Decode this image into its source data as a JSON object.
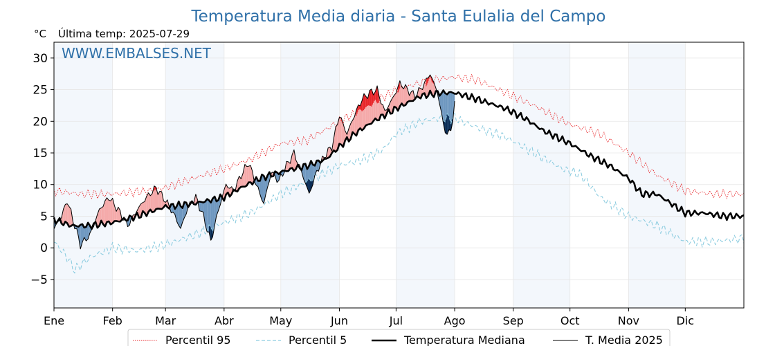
{
  "chart_data": {
    "type": "line",
    "title": "Temperatura Media diaria - Santa Eulalia del Campo",
    "unit_label": "°C",
    "subtitle": "Última temp: 2025-07-29",
    "watermark": "WWW.EMBALSES.NET",
    "ylim": [
      -9.5,
      32.5
    ],
    "yticks": [
      -5,
      0,
      5,
      10,
      15,
      20,
      25,
      30
    ],
    "ytick_labels": [
      "−5",
      "0",
      "5",
      "10",
      "15",
      "20",
      "25",
      "30"
    ],
    "xlim": [
      1,
      366
    ],
    "months": [
      {
        "label": "Ene",
        "start": 1
      },
      {
        "label": "Feb",
        "start": 32
      },
      {
        "label": "Mar",
        "start": 60
      },
      {
        "label": "Abr",
        "start": 91
      },
      {
        "label": "May",
        "start": 121
      },
      {
        "label": "Jun",
        "start": 152
      },
      {
        "label": "Jul",
        "start": 182
      },
      {
        "label": "Ago",
        "start": 213
      },
      {
        "label": "Sep",
        "start": 244
      },
      {
        "label": "Oct",
        "start": 274
      },
      {
        "label": "Nov",
        "start": 305
      },
      {
        "label": "Dic",
        "start": 335
      }
    ],
    "series": [
      {
        "name": "Percentil 95",
        "color": "#e8262a",
        "style": "dotted",
        "anchors": [
          [
            1,
            9.0
          ],
          [
            15,
            8.5
          ],
          [
            32,
            8.5
          ],
          [
            50,
            9.0
          ],
          [
            60,
            9.5
          ],
          [
            75,
            11.0
          ],
          [
            91,
            12.5
          ],
          [
            105,
            14.0
          ],
          [
            121,
            16.5
          ],
          [
            135,
            17.0
          ],
          [
            152,
            20.0
          ],
          [
            165,
            22.0
          ],
          [
            182,
            25.0
          ],
          [
            200,
            26.5
          ],
          [
            213,
            27.0
          ],
          [
            225,
            26.5
          ],
          [
            240,
            24.5
          ],
          [
            255,
            22.5
          ],
          [
            274,
            19.5
          ],
          [
            290,
            18.0
          ],
          [
            305,
            15.0
          ],
          [
            320,
            11.5
          ],
          [
            335,
            9.0
          ],
          [
            350,
            8.5
          ],
          [
            366,
            8.5
          ]
        ],
        "noise": 0.8
      },
      {
        "name": "Percentil 5",
        "color": "#8ecde0",
        "style": "dashed",
        "anchors": [
          [
            1,
            1.0
          ],
          [
            8,
            -1.5
          ],
          [
            12,
            -3.5
          ],
          [
            20,
            -1.5
          ],
          [
            32,
            0.0
          ],
          [
            45,
            -0.5
          ],
          [
            60,
            0.5
          ],
          [
            75,
            2.0
          ],
          [
            91,
            4.0
          ],
          [
            105,
            5.5
          ],
          [
            121,
            8.5
          ],
          [
            135,
            10.5
          ],
          [
            152,
            13.0
          ],
          [
            165,
            14.0
          ],
          [
            175,
            15.5
          ],
          [
            182,
            18.0
          ],
          [
            195,
            20.0
          ],
          [
            205,
            20.5
          ],
          [
            213,
            20.5
          ],
          [
            225,
            19.0
          ],
          [
            240,
            17.5
          ],
          [
            255,
            15.0
          ],
          [
            270,
            12.5
          ],
          [
            280,
            11.5
          ],
          [
            290,
            8.0
          ],
          [
            305,
            5.0
          ],
          [
            320,
            3.5
          ],
          [
            335,
            1.0
          ],
          [
            350,
            1.0
          ],
          [
            366,
            1.5
          ]
        ],
        "noise": 0.9
      },
      {
        "name": "Temperatura Mediana",
        "color": "#000000",
        "style": "thick",
        "anchors": [
          [
            1,
            4.5
          ],
          [
            10,
            3.5
          ],
          [
            20,
            3.5
          ],
          [
            32,
            4.0
          ],
          [
            45,
            5.0
          ],
          [
            60,
            6.5
          ],
          [
            75,
            7.0
          ],
          [
            91,
            8.0
          ],
          [
            100,
            9.5
          ],
          [
            110,
            11.0
          ],
          [
            121,
            12.0
          ],
          [
            135,
            13.0
          ],
          [
            145,
            14.0
          ],
          [
            152,
            16.0
          ],
          [
            160,
            18.0
          ],
          [
            170,
            20.0
          ],
          [
            182,
            22.0
          ],
          [
            195,
            24.0
          ],
          [
            205,
            24.5
          ],
          [
            213,
            24.5
          ],
          [
            225,
            23.5
          ],
          [
            240,
            22.0
          ],
          [
            250,
            20.5
          ],
          [
            260,
            18.5
          ],
          [
            274,
            16.5
          ],
          [
            285,
            14.5
          ],
          [
            295,
            13.0
          ],
          [
            305,
            11.0
          ],
          [
            312,
            8.5
          ],
          [
            320,
            8.5
          ],
          [
            330,
            6.5
          ],
          [
            335,
            5.5
          ],
          [
            345,
            5.5
          ],
          [
            355,
            5.0
          ],
          [
            366,
            5.0
          ]
        ],
        "noise": 0.6
      },
      {
        "name": "T. Media 2025",
        "color": "#000000",
        "style": "thin",
        "anchors": [
          [
            1,
            3.0
          ],
          [
            5,
            5.0
          ],
          [
            8,
            7.5
          ],
          [
            12,
            3.5
          ],
          [
            15,
            0.5
          ],
          [
            20,
            2.0
          ],
          [
            25,
            6.0
          ],
          [
            30,
            8.0
          ],
          [
            35,
            6.0
          ],
          [
            40,
            3.5
          ],
          [
            45,
            6.0
          ],
          [
            50,
            8.0
          ],
          [
            55,
            9.5
          ],
          [
            60,
            7.5
          ],
          [
            65,
            5.0
          ],
          [
            68,
            3.0
          ],
          [
            72,
            6.5
          ],
          [
            76,
            8.0
          ],
          [
            80,
            5.0
          ],
          [
            84,
            1.0
          ],
          [
            88,
            6.0
          ],
          [
            92,
            10.0
          ],
          [
            96,
            9.0
          ],
          [
            100,
            11.5
          ],
          [
            104,
            13.5
          ],
          [
            108,
            10.0
          ],
          [
            112,
            7.0
          ],
          [
            116,
            12.0
          ],
          [
            120,
            10.5
          ],
          [
            124,
            13.0
          ],
          [
            128,
            15.0
          ],
          [
            132,
            12.0
          ],
          [
            136,
            8.5
          ],
          [
            140,
            12.0
          ],
          [
            144,
            14.5
          ],
          [
            148,
            16.0
          ],
          [
            152,
            21.0
          ],
          [
            156,
            18.0
          ],
          [
            160,
            21.0
          ],
          [
            164,
            23.5
          ],
          [
            168,
            24.5
          ],
          [
            172,
            25.0
          ],
          [
            176,
            21.5
          ],
          [
            180,
            23.5
          ],
          [
            184,
            26.0
          ],
          [
            188,
            25.0
          ],
          [
            192,
            24.0
          ],
          [
            196,
            25.5
          ],
          [
            200,
            27.5
          ],
          [
            204,
            24.5
          ],
          [
            206,
            21.0
          ],
          [
            209,
            17.5
          ],
          [
            212,
            20.0
          ],
          [
            213,
            22.5
          ]
        ],
        "noise": 0.7
      }
    ],
    "legend": {
      "placement": "bottom-center",
      "entries": [
        "Percentil 95",
        "Percentil 5",
        "Temperatura Mediana",
        "T. Media 2025"
      ]
    },
    "fill_colors": {
      "above_median": "#f5aaaa",
      "above_p95": "#e8262a",
      "below_median": "#6f98c0",
      "below_p5": "#0a2c55"
    },
    "text_colors": {
      "title": "#2f70a8",
      "watermark": "#2f70a8"
    },
    "band_color": "#f3f7fc",
    "grid": true
  }
}
